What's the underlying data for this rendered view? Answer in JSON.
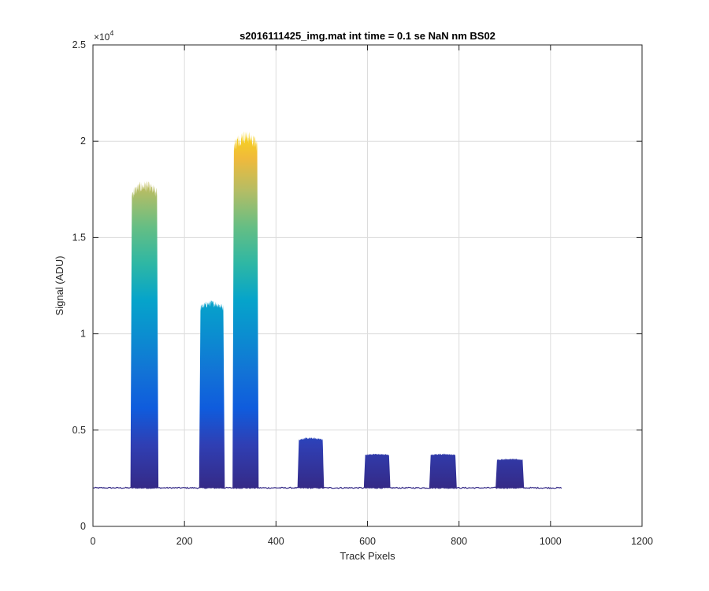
{
  "chart_data": {
    "type": "area",
    "title": "s2016111425_img.mat int time = 0.1 se  NaN nm BS02",
    "xlabel": "Track Pixels",
    "ylabel": "Signal (ADU)",
    "xlim": [
      0,
      1200
    ],
    "ylim": [
      0,
      25000
    ],
    "xticks": [
      0,
      200,
      400,
      600,
      800,
      1000,
      1200
    ],
    "xtick_labels": [
      "0",
      "200",
      "400",
      "600",
      "800",
      "1000",
      "1200"
    ],
    "yticks": [
      0,
      5000,
      10000,
      15000,
      20000,
      25000
    ],
    "ytick_labels": [
      "0",
      "0.5",
      "1",
      "1.5",
      "2",
      "2.5"
    ],
    "y_exponent_label": "×10",
    "y_exponent_power": "4",
    "grid": true,
    "colormap": "parula",
    "baseline": 2000,
    "trace_x_range": [
      0,
      1024
    ],
    "peaks": [
      {
        "x_start": 82,
        "x_end": 143,
        "top": 17200
      },
      {
        "x_start": 232,
        "x_end": 288,
        "top": 11300
      },
      {
        "x_start": 305,
        "x_end": 362,
        "top": 19700
      },
      {
        "x_start": 447,
        "x_end": 505,
        "top": 4500
      },
      {
        "x_start": 592,
        "x_end": 650,
        "top": 3700
      },
      {
        "x_start": 735,
        "x_end": 795,
        "top": 3700
      },
      {
        "x_start": 880,
        "x_end": 942,
        "top": 3450
      }
    ]
  }
}
